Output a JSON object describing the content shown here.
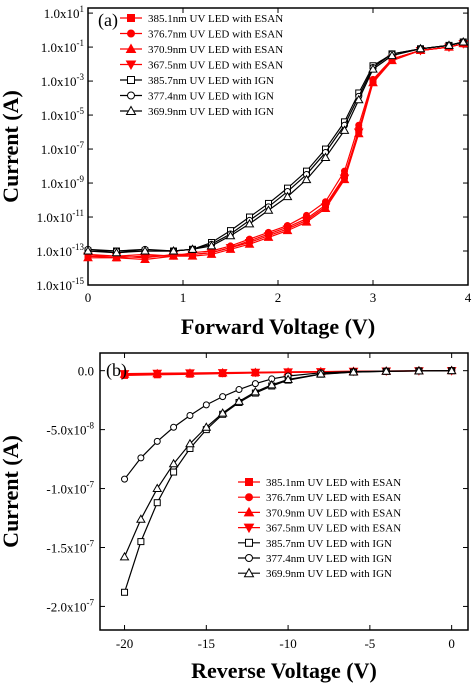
{
  "chart_data": [
    {
      "panel": "(a)",
      "type": "line",
      "xlabel": "Forward Voltage (V)",
      "ylabel": "Current (A)",
      "xlim": [
        0,
        4
      ],
      "ylim_exp": [
        -15,
        1.3
      ],
      "yscale": "log",
      "x_ticks": [
        "0",
        "1",
        "2",
        "3",
        "4"
      ],
      "y_tick_labels": [
        {
          "base": "1.0x10",
          "exp": "1"
        },
        {
          "base": "1.0x10",
          "exp": "-1"
        },
        {
          "base": "1.0x10",
          "exp": "-3"
        },
        {
          "base": "1.0x10",
          "exp": "-5"
        },
        {
          "base": "1.0x10",
          "exp": "-7"
        },
        {
          "base": "1.0x10",
          "exp": "-9"
        },
        {
          "base": "1.0x10",
          "exp": "-11"
        },
        {
          "base": "1.0x10",
          "exp": "-13"
        },
        {
          "base": "1.0x10",
          "exp": "-15"
        }
      ],
      "series": [
        {
          "name": "385.1nm UV LED with ESAN",
          "marker": "square",
          "color": "#ff0000",
          "filled": true,
          "x": [
            0,
            0.3,
            0.6,
            0.9,
            1.1,
            1.3,
            1.5,
            1.7,
            1.9,
            2.1,
            2.3,
            2.5,
            2.7,
            2.85,
            3.0,
            3.2,
            3.5,
            3.8,
            3.95
          ],
          "y_log10": [
            -13.3,
            -13.4,
            -13.3,
            -13.3,
            -13.2,
            -13.1,
            -12.8,
            -12.4,
            -12.0,
            -11.6,
            -11.1,
            -10.3,
            -8.6,
            -5.9,
            -3.0,
            -1.7,
            -1.2,
            -1.0,
            -0.8
          ]
        },
        {
          "name": "376.7nm UV LED with ESAN",
          "marker": "circle",
          "color": "#ff0000",
          "filled": true,
          "x": [
            0,
            0.3,
            0.6,
            0.9,
            1.1,
            1.3,
            1.5,
            1.7,
            1.9,
            2.1,
            2.3,
            2.5,
            2.7,
            2.85,
            3.0,
            3.2,
            3.5,
            3.8,
            3.95
          ],
          "y_log10": [
            -13.2,
            -13.3,
            -13.2,
            -13.3,
            -13.1,
            -13.0,
            -12.7,
            -12.3,
            -11.9,
            -11.5,
            -10.9,
            -10.1,
            -8.3,
            -5.6,
            -2.9,
            -1.7,
            -1.2,
            -1.0,
            -0.8
          ]
        },
        {
          "name": "370.9nm UV LED with ESAN",
          "marker": "triangle-up",
          "color": "#ff0000",
          "filled": true,
          "x": [
            0,
            0.3,
            0.6,
            0.9,
            1.1,
            1.3,
            1.5,
            1.7,
            1.9,
            2.1,
            2.3,
            2.5,
            2.7,
            2.85,
            3.0,
            3.2,
            3.5,
            3.8,
            3.95
          ],
          "y_log10": [
            -13.4,
            -13.4,
            -13.5,
            -13.3,
            -13.3,
            -13.2,
            -12.9,
            -12.6,
            -12.2,
            -11.8,
            -11.3,
            -10.5,
            -8.8,
            -6.1,
            -3.1,
            -1.8,
            -1.2,
            -1.0,
            -0.8
          ]
        },
        {
          "name": "367.5nm UV LED with ESAN",
          "marker": "triangle-down",
          "color": "#ff0000",
          "filled": true,
          "x": [
            0,
            0.3,
            0.6,
            0.9,
            1.1,
            1.3,
            1.5,
            1.7,
            1.9,
            2.1,
            2.3,
            2.5,
            2.7,
            2.85,
            3.0,
            3.2,
            3.5,
            3.8,
            3.95
          ],
          "y_log10": [
            -13.3,
            -13.3,
            -13.4,
            -13.2,
            -13.2,
            -13.1,
            -12.8,
            -12.5,
            -12.1,
            -11.7,
            -11.2,
            -10.4,
            -8.7,
            -6.0,
            -3.0,
            -1.7,
            -1.2,
            -1.0,
            -0.8
          ]
        },
        {
          "name": "385.7nm UV LED with IGN",
          "marker": "square",
          "color": "#000000",
          "filled": false,
          "x": [
            0,
            0.3,
            0.6,
            0.9,
            1.1,
            1.3,
            1.5,
            1.7,
            1.9,
            2.1,
            2.3,
            2.5,
            2.7,
            2.85,
            3.0,
            3.2,
            3.5,
            3.8,
            3.95
          ],
          "y_log10": [
            -13.0,
            -13.0,
            -13.0,
            -13.0,
            -12.9,
            -12.5,
            -11.8,
            -11.0,
            -10.2,
            -9.3,
            -8.3,
            -7.0,
            -5.4,
            -3.7,
            -2.1,
            -1.4,
            -1.1,
            -0.9,
            -0.7
          ]
        },
        {
          "name": "377.4nm UV LED with IGN",
          "marker": "circle",
          "color": "#000000",
          "filled": false,
          "x": [
            0,
            0.3,
            0.6,
            0.9,
            1.1,
            1.3,
            1.5,
            1.7,
            1.9,
            2.1,
            2.3,
            2.5,
            2.7,
            2.85,
            3.0,
            3.2,
            3.5,
            3.8,
            3.95
          ],
          "y_log10": [
            -12.9,
            -13.0,
            -12.9,
            -13.0,
            -12.9,
            -12.6,
            -12.0,
            -11.2,
            -10.4,
            -9.5,
            -8.5,
            -7.2,
            -5.6,
            -3.9,
            -2.2,
            -1.4,
            -1.1,
            -0.9,
            -0.7
          ]
        },
        {
          "name": "369.9nm UV LED with IGN",
          "marker": "triangle-up",
          "color": "#000000",
          "filled": false,
          "x": [
            0,
            0.3,
            0.6,
            0.9,
            1.1,
            1.3,
            1.5,
            1.7,
            1.9,
            2.1,
            2.3,
            2.5,
            2.7,
            2.85,
            3.0,
            3.2,
            3.5,
            3.8,
            3.95
          ],
          "y_log10": [
            -13.0,
            -13.1,
            -13.0,
            -13.0,
            -12.9,
            -12.7,
            -12.1,
            -11.4,
            -10.6,
            -9.8,
            -8.8,
            -7.5,
            -5.9,
            -4.1,
            -2.3,
            -1.5,
            -1.1,
            -0.9,
            -0.7
          ]
        }
      ]
    },
    {
      "panel": "(b)",
      "type": "line",
      "xlabel": "Reverse Voltage (V)",
      "ylabel": "Current (A)",
      "xlim": [
        -21.5,
        1
      ],
      "ylim": [
        -2.2e-07,
        1.5e-08
      ],
      "x_ticks": [
        "-20",
        "-15",
        "-10",
        "-5",
        "0"
      ],
      "x_tick_values": [
        -20,
        -15,
        -10,
        -5,
        0
      ],
      "y_ticks": [
        {
          "value": 0,
          "label": "0.0"
        },
        {
          "value": -5e-08,
          "label": "-5.0x10",
          "exp": "-8"
        },
        {
          "value": -1e-07,
          "label": "-1.0x10",
          "exp": "-7"
        },
        {
          "value": -1.5e-07,
          "label": "-1.5x10",
          "exp": "-7"
        },
        {
          "value": -2e-07,
          "label": "-2.0x10",
          "exp": "-7"
        }
      ],
      "series": [
        {
          "name": "385.1nm UV LED with ESAN",
          "marker": "square",
          "color": "#ff0000",
          "filled": true,
          "x": [
            -20,
            -18,
            -16,
            -14,
            -12,
            -10,
            -8,
            -6,
            -4,
            -2,
            0
          ],
          "y": [
            -4e-09,
            -3.5e-09,
            -3e-09,
            -2.5e-09,
            -2e-09,
            -1.5e-09,
            -1.1e-09,
            -8e-10,
            -5e-10,
            -2e-10,
            0
          ]
        },
        {
          "name": "376.7nm UV LED with ESAN",
          "marker": "circle",
          "color": "#ff0000",
          "filled": true,
          "x": [
            -20,
            -18,
            -16,
            -14,
            -12,
            -10,
            -8,
            -6,
            -4,
            -2,
            0
          ],
          "y": [
            -3.5e-09,
            -3e-09,
            -2.6e-09,
            -2.2e-09,
            -1.8e-09,
            -1.4e-09,
            -1e-09,
            -7e-10,
            -4e-10,
            -2e-10,
            0
          ]
        },
        {
          "name": "370.9nm UV LED with ESAN",
          "marker": "triangle-up",
          "color": "#ff0000",
          "filled": true,
          "x": [
            -20,
            -18,
            -16,
            -14,
            -12,
            -10,
            -8,
            -6,
            -4,
            -2,
            0
          ],
          "y": [
            -3e-09,
            -2.6e-09,
            -2.2e-09,
            -1.9e-09,
            -1.5e-09,
            -1.2e-09,
            -9e-10,
            -6e-10,
            -4e-10,
            -2e-10,
            0
          ]
        },
        {
          "name": "367.5nm UV LED with ESAN",
          "marker": "triangle-down",
          "color": "#ff0000",
          "filled": true,
          "x": [
            -20,
            -18,
            -16,
            -14,
            -12,
            -10,
            -8,
            -6,
            -4,
            -2,
            0
          ],
          "y": [
            -2.5e-09,
            -2.2e-09,
            -1.9e-09,
            -1.6e-09,
            -1.3e-09,
            -1e-09,
            -8e-10,
            -5e-10,
            -3e-10,
            -1e-10,
            0
          ]
        },
        {
          "name": "385.7nm UV LED with IGN",
          "marker": "square",
          "color": "#000000",
          "filled": false,
          "x": [
            -20,
            -19,
            -18,
            -17,
            -16,
            -15,
            -14,
            -13,
            -12,
            -11,
            -10,
            -8,
            -6,
            -4,
            -2,
            0
          ],
          "y": [
            -1.88e-07,
            -1.45e-07,
            -1.12e-07,
            -8.6e-08,
            -6.6e-08,
            -5e-08,
            -3.7e-08,
            -2.7e-08,
            -1.9e-08,
            -1.3e-08,
            -8e-09,
            -3e-09,
            -1.2e-09,
            -5e-10,
            -2e-10,
            0
          ]
        },
        {
          "name": "377.4nm UV LED with IGN",
          "marker": "circle",
          "color": "#000000",
          "filled": false,
          "x": [
            -20,
            -19,
            -18,
            -17,
            -16,
            -15,
            -14,
            -13,
            -12,
            -11,
            -10,
            -8,
            -6,
            -4,
            -2,
            0
          ],
          "y": [
            -9.2e-08,
            -7.4e-08,
            -6e-08,
            -4.8e-08,
            -3.8e-08,
            -2.9e-08,
            -2.2e-08,
            -1.6e-08,
            -1.1e-08,
            -7e-09,
            -4.5e-09,
            -1.8e-09,
            -8e-10,
            -4e-10,
            -1e-10,
            0
          ]
        },
        {
          "name": "369.9nm UV LED with IGN",
          "marker": "triangle-up",
          "color": "#000000",
          "filled": false,
          "x": [
            -20,
            -19,
            -18,
            -17,
            -16,
            -15,
            -14,
            -13,
            -12,
            -11,
            -10,
            -8,
            -6,
            -4,
            -2,
            0
          ],
          "y": [
            -1.58e-07,
            -1.26e-07,
            -1e-07,
            -7.9e-08,
            -6.2e-08,
            -4.8e-08,
            -3.6e-08,
            -2.6e-08,
            -1.8e-08,
            -1.2e-08,
            -7.5e-09,
            -2.8e-09,
            -1.1e-09,
            -5e-10,
            -2e-10,
            0
          ]
        }
      ]
    }
  ]
}
